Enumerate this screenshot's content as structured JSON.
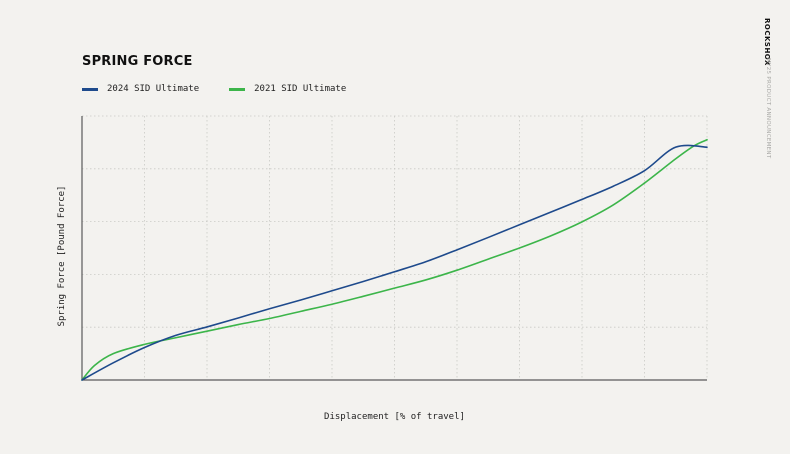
{
  "chart_data": {
    "type": "line",
    "title": "SPRING FORCE",
    "xlabel": "Displacement [% of travel]",
    "ylabel": "Spring Force [Pound Force]",
    "xlim": [
      0,
      100
    ],
    "ylim": [
      0,
      100
    ],
    "grid": true,
    "x_grid_divisions": 10,
    "y_grid_divisions": 5,
    "legend": "top-left",
    "series": [
      {
        "name": "2024 SID Ultimate",
        "color": "#1e4a8c",
        "x": [
          0,
          5,
          10,
          15,
          20,
          25,
          30,
          35,
          40,
          45,
          50,
          55,
          60,
          65,
          70,
          75,
          80,
          85,
          90,
          95,
          100
        ],
        "y": [
          0,
          6.5,
          12.3,
          16.9,
          20.1,
          23.5,
          27.0,
          30.3,
          33.8,
          37.3,
          41.0,
          44.8,
          49.3,
          54.0,
          58.8,
          63.6,
          68.4,
          73.4,
          79.3,
          88.2,
          88.2
        ]
      },
      {
        "name": "2021 SID Ultimate",
        "color": "#3cb54a",
        "x": [
          0,
          2,
          5,
          10,
          15,
          20,
          25,
          30,
          35,
          40,
          45,
          50,
          55,
          60,
          65,
          70,
          75,
          80,
          85,
          90,
          95,
          98,
          100
        ],
        "y": [
          0,
          5.5,
          10.0,
          13.5,
          16.0,
          18.5,
          21.0,
          23.3,
          26.0,
          28.7,
          31.7,
          34.8,
          37.9,
          41.6,
          45.8,
          50.0,
          54.6,
          59.9,
          66.3,
          74.6,
          83.8,
          88.8,
          91.0
        ]
      }
    ]
  },
  "branding": {
    "logo": "ROCKSHOX",
    "subtitle": "MY25 PRODUCT ANNOUNCEMENT"
  },
  "colors": {
    "background": "#f3f2ef",
    "axis": "#5a5a5a",
    "grid": "#c9c9c5"
  }
}
